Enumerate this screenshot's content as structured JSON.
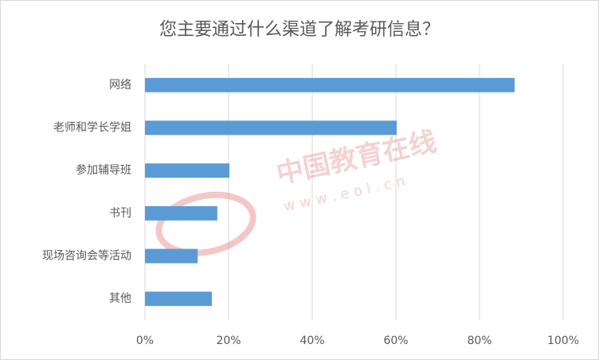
{
  "chart_data": {
    "type": "bar",
    "orientation": "horizontal",
    "title": "您主要通过什么渠道了解考研信息？",
    "categories": [
      "网络",
      "老师和学长学姐",
      "参加辅导班",
      "书刊",
      "现场咨询会等活动",
      "其他"
    ],
    "values": [
      88.4,
      60.2,
      20.2,
      17.3,
      12.6,
      16.0
    ],
    "color": "#5b9bd5",
    "xlim": [
      0,
      100
    ],
    "xticks": [
      {
        "value": 0,
        "label": "0%"
      },
      {
        "value": 20,
        "label": "20%"
      },
      {
        "value": 40,
        "label": "40%"
      },
      {
        "value": 60,
        "label": "60%"
      },
      {
        "value": 80,
        "label": "80%"
      },
      {
        "value": 100,
        "label": "100%"
      }
    ],
    "grid": true,
    "watermark": [
      "中国教育在线",
      "w w w . e o l . c n"
    ]
  }
}
